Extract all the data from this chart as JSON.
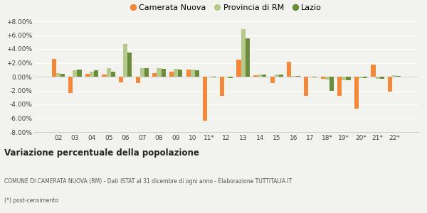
{
  "years": [
    "02",
    "03",
    "04",
    "05",
    "06",
    "07",
    "08",
    "09",
    "10",
    "11*",
    "12",
    "13",
    "14",
    "15",
    "16",
    "17",
    "18*",
    "19*",
    "20*",
    "21*",
    "22*"
  ],
  "camerata_nuova": [
    2.6,
    -2.4,
    0.4,
    0.3,
    -0.8,
    -0.9,
    0.5,
    0.7,
    1.0,
    -6.4,
    -2.8,
    2.5,
    0.2,
    -0.9,
    2.2,
    -2.8,
    -0.3,
    -2.8,
    -4.6,
    1.7,
    -2.2
  ],
  "provincia_rm": [
    0.5,
    0.9,
    0.7,
    1.2,
    4.7,
    1.2,
    1.2,
    1.1,
    1.0,
    -0.1,
    -0.1,
    6.9,
    0.3,
    0.3,
    0.1,
    -0.1,
    -0.4,
    -0.5,
    -0.2,
    -0.3,
    0.2
  ],
  "lazio": [
    0.4,
    1.0,
    0.9,
    0.7,
    3.5,
    1.2,
    1.1,
    1.0,
    0.9,
    -0.1,
    -0.2,
    5.5,
    0.3,
    0.3,
    0.1,
    -0.1,
    -2.1,
    -0.5,
    -0.2,
    -0.3,
    0.1
  ],
  "color_camerata": "#f4883a",
  "color_provincia": "#b5c98a",
  "color_lazio": "#6b8c3a",
  "bg_color": "#f2f2ee",
  "title": "Variazione percentuale della popolazione",
  "subtitle": "COMUNE DI CAMERATA NUOVA (RM) - Dati ISTAT al 31 dicembre di ogni anno - Elaborazione TUTTITALIA.IT",
  "footnote": "(*) post-censimento",
  "ylim": [
    -8.0,
    8.0
  ],
  "yticks": [
    -8.0,
    -6.0,
    -4.0,
    -2.0,
    0.0,
    2.0,
    4.0,
    6.0,
    8.0
  ],
  "legend_labels": [
    "Camerata Nuova",
    "Provincia di RM",
    "Lazio"
  ]
}
